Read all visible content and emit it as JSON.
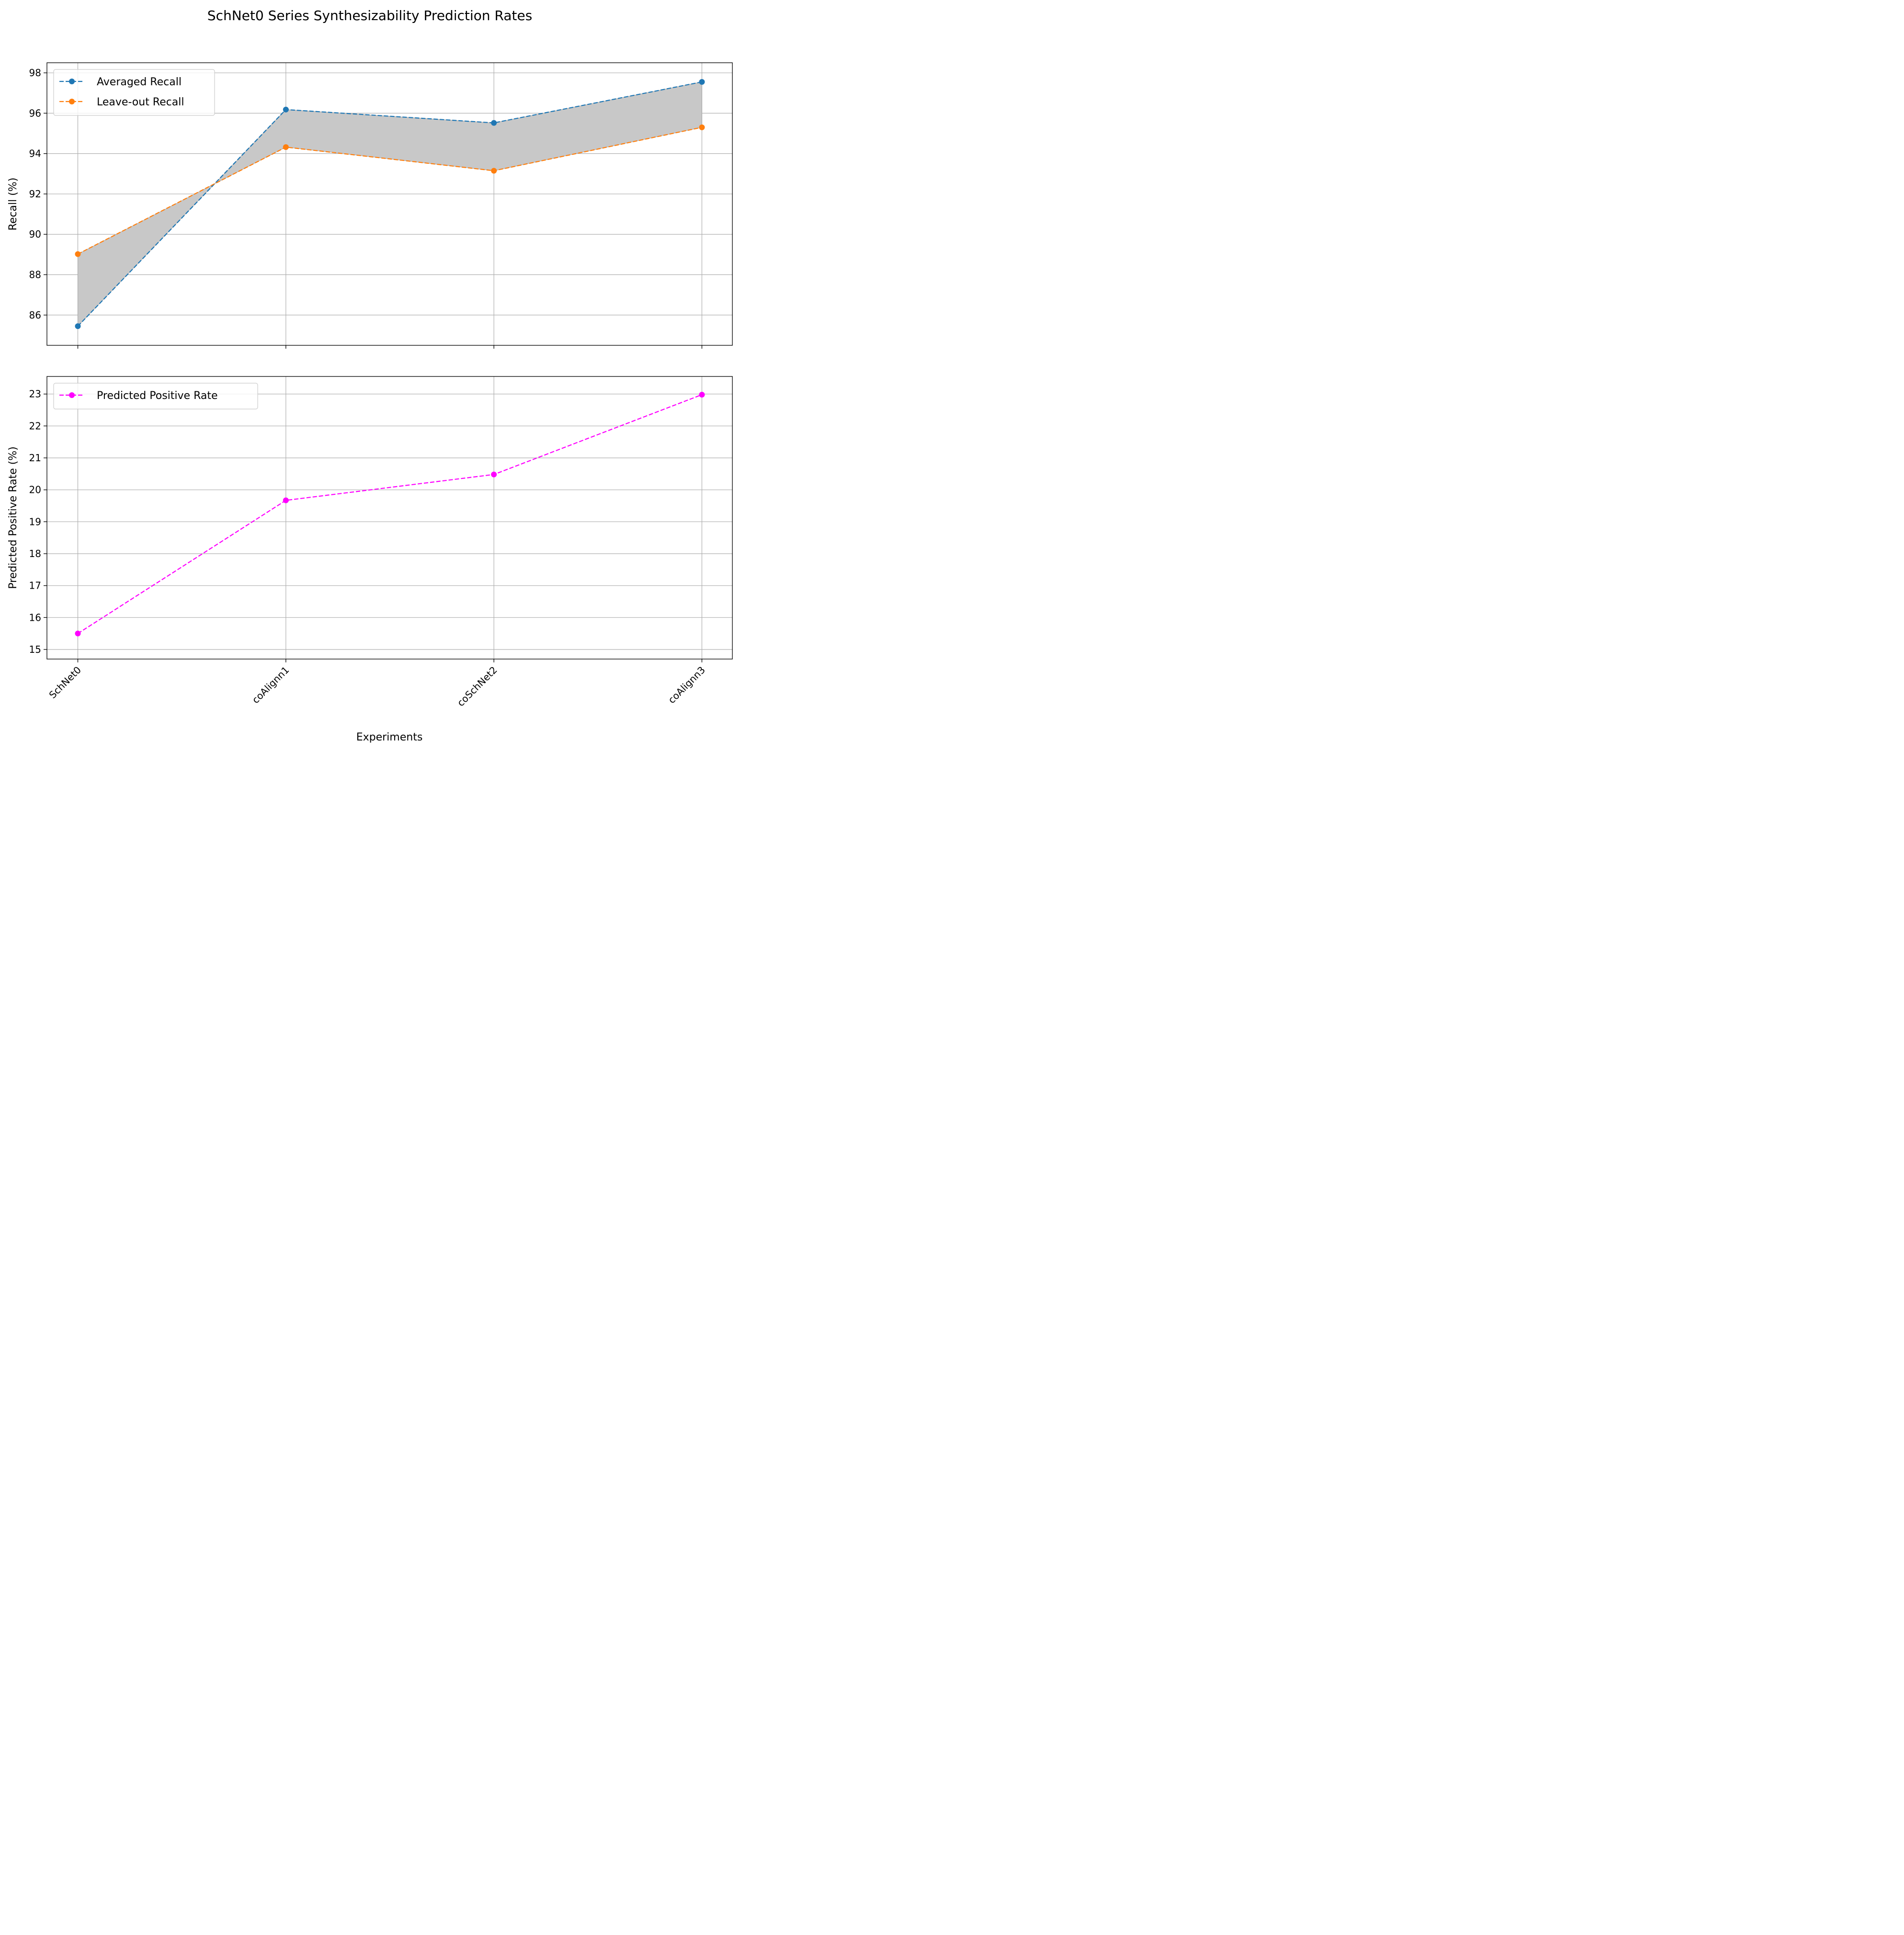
{
  "chart_data": {
    "title": "SchNet0 Series Synthesizability Prediction Rates",
    "xlabel": "Experiments",
    "categories": [
      "SchNet0",
      "coAlignn1",
      "coSchNet2",
      "coAlignn3"
    ],
    "subplots": [
      {
        "type": "line",
        "ylabel": "Recall (%)",
        "ylim": [
          84.5,
          98.5
        ],
        "yticks": [
          "86",
          "88",
          "90",
          "92",
          "94",
          "96",
          "98"
        ],
        "yticks_num": [
          86,
          88,
          90,
          92,
          94,
          96,
          98
        ],
        "grid": true,
        "legend_loc": "upper-left",
        "fill_between": {
          "series": [
            0,
            1
          ],
          "color": "#c8c8c8"
        },
        "series": [
          {
            "name": "Averaged Recall",
            "values": [
              85.45,
              96.18,
              95.52,
              97.55
            ],
            "color": "#1f77b4",
            "style": "dashed",
            "marker": "circle"
          },
          {
            "name": "Leave-out Recall",
            "values": [
              89.02,
              94.32,
              93.15,
              95.3
            ],
            "color": "#ff7f0e",
            "style": "dashed",
            "marker": "circle"
          }
        ]
      },
      {
        "type": "line",
        "ylabel": "Predicted Positive Rate (%)",
        "ylim": [
          14.7,
          23.55
        ],
        "yticks": [
          "15",
          "16",
          "17",
          "18",
          "19",
          "20",
          "21",
          "22",
          "23"
        ],
        "yticks_num": [
          15,
          16,
          17,
          18,
          19,
          20,
          21,
          22,
          23
        ],
        "grid": true,
        "legend_loc": "upper-left",
        "series": [
          {
            "name": "Predicted Positive Rate",
            "values": [
              15.5,
              19.67,
              20.48,
              22.98
            ],
            "color": "#ff00ff",
            "style": "dashed",
            "marker": "circle"
          }
        ]
      }
    ]
  }
}
